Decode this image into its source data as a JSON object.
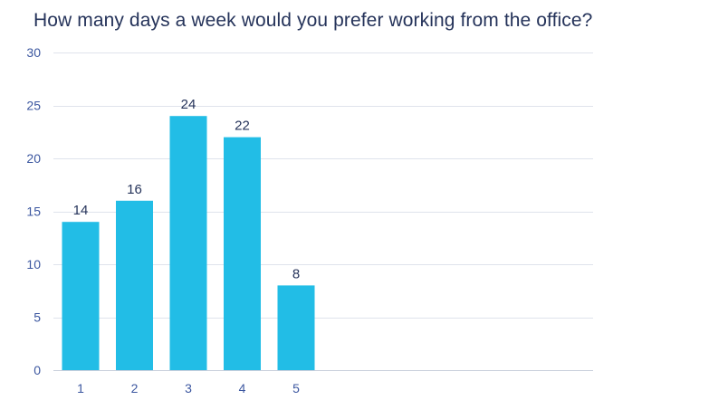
{
  "chart_data": {
    "type": "bar",
    "title": "How many days a week would you prefer working from the office?",
    "xlabel": "",
    "ylabel": "",
    "categories": [
      "1",
      "2",
      "3",
      "4",
      "5"
    ],
    "values": [
      14,
      16,
      24,
      22,
      8
    ],
    "ylim": [
      0,
      30
    ],
    "yticks": [
      0,
      5,
      10,
      15,
      20,
      25,
      30
    ],
    "grid": "horizontal",
    "data_labels": true,
    "bar_color": "#22bde6",
    "grid_color": "#dfe3ec",
    "axis_color": "#c9cfdc"
  }
}
